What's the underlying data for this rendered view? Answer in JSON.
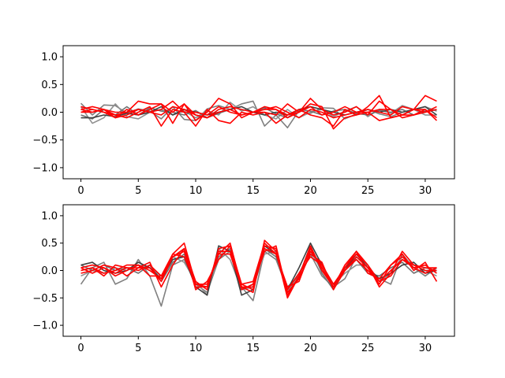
{
  "chart_data": [
    {
      "type": "line",
      "title": "",
      "xlabel": "",
      "ylabel": "",
      "xlim": [
        -1.55,
        32.55
      ],
      "ylim": [
        -1.2,
        1.2
      ],
      "xticks": [
        0,
        5,
        10,
        15,
        20,
        25,
        30
      ],
      "yticks": [
        1.0,
        0.5,
        0.0,
        -0.5,
        -1.0
      ],
      "xtick_labels": [
        "0",
        "5",
        "10",
        "15",
        "20",
        "25",
        "30"
      ],
      "ytick_labels": [
        "1.0",
        "0.5",
        "0.0",
        "−0.5",
        "−1.0"
      ],
      "grid": false,
      "x": [
        0,
        1,
        2,
        3,
        4,
        5,
        6,
        7,
        8,
        9,
        10,
        11,
        12,
        13,
        14,
        15,
        16,
        17,
        18,
        19,
        20,
        21,
        22,
        23,
        24,
        25,
        26,
        27,
        28,
        29,
        30,
        31
      ],
      "series": [
        {
          "color": "#808080",
          "values": [
            0.16,
            -0.05,
            0.13,
            0.12,
            -0.02,
            0.06,
            0.02,
            -0.12,
            0.1,
            -0.13,
            -0.15,
            0.06,
            0.12,
            0.05,
            0.15,
            0.2,
            -0.25,
            -0.05,
            -0.28,
            0.03,
            -0.02,
            0.08,
            0.07,
            -0.12,
            -0.03,
            0.05,
            -0.03,
            -0.08,
            0.0,
            0.05,
            0.1,
            0.02
          ]
        },
        {
          "color": "#909090",
          "values": [
            0.1,
            -0.2,
            -0.1,
            0.15,
            -0.08,
            -0.12,
            0.0,
            0.05,
            -0.05,
            0.02,
            -0.1,
            0.03,
            -0.05,
            0.18,
            0.02,
            0.1,
            -0.05,
            -0.12,
            0.05,
            -0.1,
            0.0,
            0.05,
            -0.08,
            0.02,
            0.1,
            -0.08,
            0.05,
            -0.02,
            0.12,
            0.05,
            -0.05,
            -0.05
          ]
        },
        {
          "color": "#707070",
          "values": [
            -0.05,
            -0.12,
            0.05,
            -0.05,
            0.1,
            -0.05,
            0.08,
            0.02,
            0.0,
            -0.05,
            0.03,
            -0.1,
            -0.02,
            0.05,
            -0.05,
            0.0,
            0.08,
            -0.03,
            -0.1,
            0.05,
            0.02,
            -0.05,
            0.02,
            0.05,
            -0.02,
            -0.05,
            0.03,
            0.0,
            0.05,
            -0.05,
            0.02,
            0.05
          ]
        },
        {
          "color": "#404040",
          "values": [
            -0.1,
            -0.1,
            -0.05,
            -0.08,
            -0.02,
            -0.05,
            0.0,
            0.1,
            -0.05,
            0.05,
            0.0,
            -0.05,
            0.0,
            0.05,
            0.1,
            0.0,
            -0.05,
            0.0,
            -0.05,
            0.05,
            0.1,
            0.05,
            0.0,
            -0.05,
            0.0,
            0.05,
            0.0,
            0.05,
            0.0,
            0.05,
            0.1,
            -0.05
          ]
        },
        {
          "color": "#ff0000",
          "values": [
            0.05,
            0.1,
            0.05,
            -0.1,
            0.05,
            -0.05,
            0.05,
            0.15,
            -0.2,
            0.15,
            -0.05,
            -0.1,
            0.05,
            0.1,
            0.05,
            0.0,
            0.1,
            0.05,
            -0.05,
            0.0,
            0.25,
            0.05,
            -0.05,
            0.0,
            0.1,
            -0.05,
            0.2,
            0.05,
            -0.1,
            -0.05,
            0.0,
            0.1
          ]
        },
        {
          "color": "#ff0000",
          "values": [
            0.0,
            0.05,
            0.0,
            -0.05,
            0.0,
            0.2,
            0.15,
            0.15,
            0.0,
            0.15,
            -0.15,
            0.0,
            0.25,
            0.15,
            -0.1,
            0.0,
            0.05,
            0.1,
            0.0,
            -0.1,
            0.05,
            0.0,
            -0.1,
            -0.05,
            0.0,
            0.05,
            0.0,
            -0.05,
            0.1,
            0.05,
            0.0,
            0.05
          ]
        },
        {
          "color": "#ff0000",
          "values": [
            0.05,
            0.0,
            0.05,
            -0.05,
            -0.1,
            0.0,
            0.1,
            -0.25,
            0.05,
            0.0,
            -0.25,
            0.05,
            -0.15,
            -0.2,
            0.0,
            -0.05,
            0.0,
            -0.2,
            -0.05,
            0.05,
            -0.05,
            -0.1,
            -0.25,
            0.05,
            -0.05,
            0.0,
            -0.15,
            -0.1,
            -0.05,
            0.05,
            0.05,
            -0.15
          ]
        },
        {
          "color": "#ff0000",
          "values": [
            0.1,
            0.05,
            0.0,
            -0.1,
            -0.05,
            0.05,
            0.0,
            0.05,
            0.2,
            0.0,
            0.0,
            -0.05,
            0.1,
            0.0,
            -0.05,
            0.0,
            0.0,
            -0.05,
            0.15,
            0.0,
            0.15,
            0.1,
            -0.3,
            -0.1,
            -0.05,
            0.1,
            0.3,
            -0.1,
            -0.05,
            0.05,
            0.3,
            0.2
          ]
        },
        {
          "color": "#ff0000",
          "values": [
            0.0,
            0.0,
            0.05,
            0.0,
            0.0,
            0.05,
            0.0,
            -0.05,
            0.1,
            0.05,
            -0.05,
            -0.1,
            0.0,
            0.05,
            -0.05,
            0.0,
            0.05,
            0.05,
            -0.1,
            0.0,
            0.1,
            -0.05,
            0.0,
            0.1,
            0.0,
            0.0,
            0.05,
            0.05,
            -0.05,
            -0.05,
            0.05,
            -0.1
          ]
        }
      ]
    },
    {
      "type": "line",
      "title": "",
      "xlabel": "",
      "ylabel": "",
      "xlim": [
        -1.55,
        32.55
      ],
      "ylim": [
        -1.2,
        1.2
      ],
      "xticks": [
        0,
        5,
        10,
        15,
        20,
        25,
        30
      ],
      "yticks": [
        1.0,
        0.5,
        0.0,
        -0.5,
        -1.0
      ],
      "xtick_labels": [
        "0",
        "5",
        "10",
        "15",
        "20",
        "25",
        "30"
      ],
      "ytick_labels": [
        "1.0",
        "0.5",
        "0.0",
        "−0.5",
        "−1.0"
      ],
      "grid": false,
      "x": [
        0,
        1,
        2,
        3,
        4,
        5,
        6,
        7,
        8,
        9,
        10,
        11,
        12,
        13,
        14,
        15,
        16,
        17,
        18,
        19,
        20,
        21,
        22,
        23,
        24,
        25,
        26,
        27,
        28,
        29,
        30,
        31
      ],
      "series": [
        {
          "color": "#808080",
          "values": [
            -0.25,
            0.05,
            0.15,
            -0.25,
            -0.15,
            0.2,
            -0.1,
            -0.65,
            0.1,
            0.2,
            -0.25,
            -0.4,
            0.2,
            0.35,
            -0.3,
            -0.55,
            0.35,
            0.2,
            -0.35,
            -0.15,
            0.3,
            -0.1,
            -0.3,
            -0.15,
            0.25,
            0.05,
            -0.15,
            -0.25,
            0.3,
            0.05,
            -0.1,
            0.05
          ]
        },
        {
          "color": "#909090",
          "values": [
            -0.1,
            0.0,
            -0.05,
            0.05,
            0.0,
            0.1,
            0.05,
            -0.1,
            0.25,
            0.15,
            -0.2,
            -0.45,
            0.4,
            0.2,
            -0.35,
            -0.3,
            0.3,
            0.35,
            -0.4,
            -0.05,
            0.35,
            0.0,
            -0.25,
            -0.05,
            0.1,
            0.1,
            -0.2,
            -0.05,
            0.25,
            0.1,
            0.0,
            -0.1
          ]
        },
        {
          "color": "#707070",
          "values": [
            0.1,
            0.0,
            0.1,
            0.0,
            0.05,
            -0.05,
            0.1,
            -0.2,
            0.15,
            0.3,
            -0.25,
            -0.3,
            0.25,
            0.4,
            -0.35,
            -0.25,
            0.4,
            0.25,
            -0.3,
            -0.1,
            0.45,
            -0.05,
            -0.35,
            0.05,
            0.2,
            -0.05,
            -0.1,
            0.05,
            0.15,
            -0.05,
            0.05,
            0.0
          ]
        },
        {
          "color": "#404040",
          "values": [
            0.1,
            0.15,
            0.0,
            -0.05,
            0.0,
            0.15,
            0.05,
            -0.15,
            0.2,
            0.25,
            -0.3,
            -0.45,
            0.45,
            0.35,
            -0.45,
            -0.35,
            0.45,
            0.3,
            -0.35,
            0.05,
            0.5,
            0.1,
            -0.25,
            0.0,
            0.3,
            0.05,
            -0.15,
            -0.05,
            0.1,
            0.15,
            -0.05,
            0.0
          ]
        },
        {
          "color": "#ff0000",
          "values": [
            0.0,
            0.05,
            -0.05,
            0.0,
            0.1,
            0.1,
            -0.1,
            -0.1,
            0.3,
            0.5,
            -0.25,
            -0.25,
            0.3,
            0.5,
            -0.3,
            -0.4,
            0.55,
            0.35,
            -0.5,
            -0.1,
            0.4,
            0.05,
            -0.3,
            0.1,
            0.35,
            0.1,
            -0.3,
            -0.05,
            0.35,
            0.1,
            0.05,
            0.05
          ]
        },
        {
          "color": "#ff0000",
          "values": [
            0.05,
            0.1,
            0.05,
            -0.05,
            0.05,
            0.05,
            0.15,
            -0.3,
            0.1,
            0.4,
            -0.35,
            -0.2,
            0.2,
            0.45,
            -0.25,
            -0.2,
            0.5,
            0.3,
            -0.3,
            -0.2,
            0.35,
            0.1,
            -0.25,
            0.05,
            0.3,
            0.1,
            -0.2,
            -0.1,
            0.2,
            0.05,
            0.1,
            -0.05
          ]
        },
        {
          "color": "#ff0000",
          "values": [
            -0.05,
            0.0,
            0.1,
            0.05,
            -0.1,
            0.05,
            0.05,
            -0.2,
            0.25,
            0.35,
            -0.3,
            -0.3,
            0.35,
            0.35,
            -0.25,
            -0.35,
            0.45,
            0.4,
            -0.4,
            -0.15,
            0.3,
            0.15,
            -0.35,
            0.0,
            0.25,
            0.05,
            -0.25,
            0.1,
            0.3,
            0.0,
            0.15,
            -0.2
          ]
        },
        {
          "color": "#ff0000",
          "values": [
            0.0,
            0.05,
            -0.1,
            0.1,
            0.05,
            0.0,
            0.1,
            -0.1,
            0.25,
            0.4,
            -0.2,
            -0.35,
            0.4,
            0.45,
            -0.35,
            -0.25,
            0.35,
            0.45,
            -0.45,
            -0.1,
            0.45,
            0.0,
            -0.3,
            0.05,
            0.35,
            -0.05,
            -0.15,
            0.1,
            0.25,
            0.05,
            -0.05,
            0.05
          ]
        },
        {
          "color": "#ff0000",
          "values": [
            0.05,
            -0.05,
            0.05,
            -0.1,
            0.0,
            0.1,
            0.0,
            -0.15,
            0.3,
            0.25,
            -0.25,
            -0.3,
            0.3,
            0.3,
            -0.3,
            -0.3,
            0.4,
            0.3,
            -0.35,
            -0.05,
            0.25,
            0.1,
            -0.25,
            0.0,
            0.2,
            0.0,
            -0.2,
            0.0,
            0.2,
            0.1,
            0.0,
            0.0
          ]
        }
      ]
    }
  ]
}
